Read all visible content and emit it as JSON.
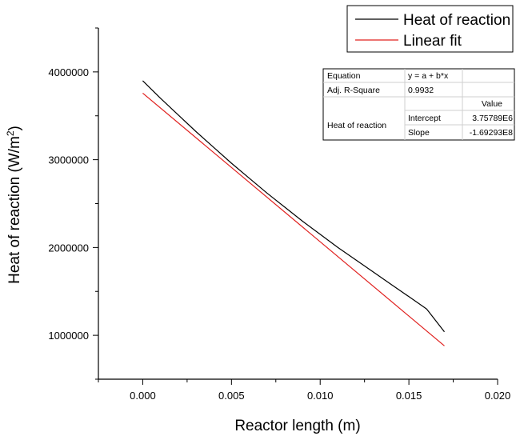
{
  "chart_data": {
    "type": "line",
    "xlabel": "Reactor length (m)",
    "ylabel_prefix": "Heat of reaction (W/m",
    "ylabel_sup": "2",
    "ylabel_suffix": ")",
    "xlim": [
      -0.0025,
      0.02
    ],
    "ylim": [
      500000,
      4500000
    ],
    "x_ticks": [
      0.0,
      0.005,
      0.01,
      0.015,
      0.02
    ],
    "x_tick_labels": [
      "0.000",
      "0.005",
      "0.010",
      "0.015",
      "0.020"
    ],
    "y_ticks": [
      1000000,
      2000000,
      3000000,
      4000000
    ],
    "y_tick_labels": [
      "1000000",
      "2000000",
      "3000000",
      "4000000"
    ],
    "legend_position": "top-right",
    "series": [
      {
        "name": "Heat of reaction",
        "color": "#000000",
        "x": [
          0.0,
          0.001,
          0.002,
          0.003,
          0.004,
          0.005,
          0.006,
          0.007,
          0.008,
          0.009,
          0.01,
          0.011,
          0.012,
          0.013,
          0.014,
          0.015,
          0.016,
          0.017
        ],
        "y": [
          3900000,
          3700000,
          3510000,
          3320000,
          3140000,
          2960000,
          2790000,
          2620000,
          2460000,
          2300000,
          2150000,
          2000000,
          1860000,
          1720000,
          1580000,
          1440000,
          1300000,
          1040000
        ]
      },
      {
        "name": "Linear fit",
        "color": "#e0201e",
        "x": [
          0.0,
          0.017
        ],
        "y": [
          3757890,
          879909
        ]
      }
    ],
    "fit_table": {
      "equation_label": "Equation",
      "equation_value": "y = a + b*x",
      "r2_label": "Adj. R-Square",
      "r2_value": "0.9932",
      "value_header": "Value",
      "series_label": "Heat of reaction",
      "intercept_label": "Intercept",
      "intercept_value": "3.75789E6",
      "slope_label": "Slope",
      "slope_value": "-1.69293E8"
    }
  }
}
